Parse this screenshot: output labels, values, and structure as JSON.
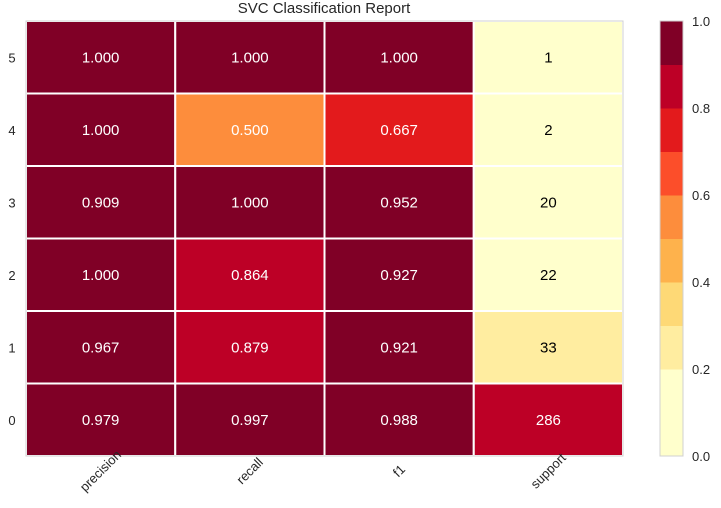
{
  "chart_data": {
    "type": "heatmap",
    "title": "SVC Classification Report",
    "columns": [
      "precision",
      "recall",
      "f1",
      "support"
    ],
    "rows": [
      "5",
      "4",
      "3",
      "2",
      "1",
      "0"
    ],
    "cells": [
      [
        "1.000",
        "1.000",
        "1.000",
        "1"
      ],
      [
        "1.000",
        "0.500",
        "0.667",
        "2"
      ],
      [
        "0.909",
        "1.000",
        "0.952",
        "20"
      ],
      [
        "1.000",
        "0.864",
        "0.927",
        "22"
      ],
      [
        "0.967",
        "0.879",
        "0.921",
        "33"
      ],
      [
        "0.979",
        "0.997",
        "0.988",
        "286"
      ]
    ],
    "color_values": [
      [
        1.0,
        1.0,
        1.0,
        0.0
      ],
      [
        1.0,
        0.5,
        0.667,
        0.003
      ],
      [
        0.909,
        1.0,
        0.952,
        0.07
      ],
      [
        1.0,
        0.864,
        0.927,
        0.077
      ],
      [
        0.967,
        0.879,
        0.921,
        0.115
      ],
      [
        0.979,
        0.997,
        0.988,
        0.818
      ]
    ],
    "colorbar": {
      "ticks": [
        "0.0",
        "0.2",
        "0.4",
        "0.6",
        "0.8",
        "1.0"
      ],
      "range": [
        0,
        1
      ],
      "levels": 10
    },
    "colormap": [
      "#ffffcc",
      "#ffeda0",
      "#fed976",
      "#feb24c",
      "#fd8d3c",
      "#fc4e2a",
      "#e31a1c",
      "#bd0026",
      "#800026"
    ]
  }
}
